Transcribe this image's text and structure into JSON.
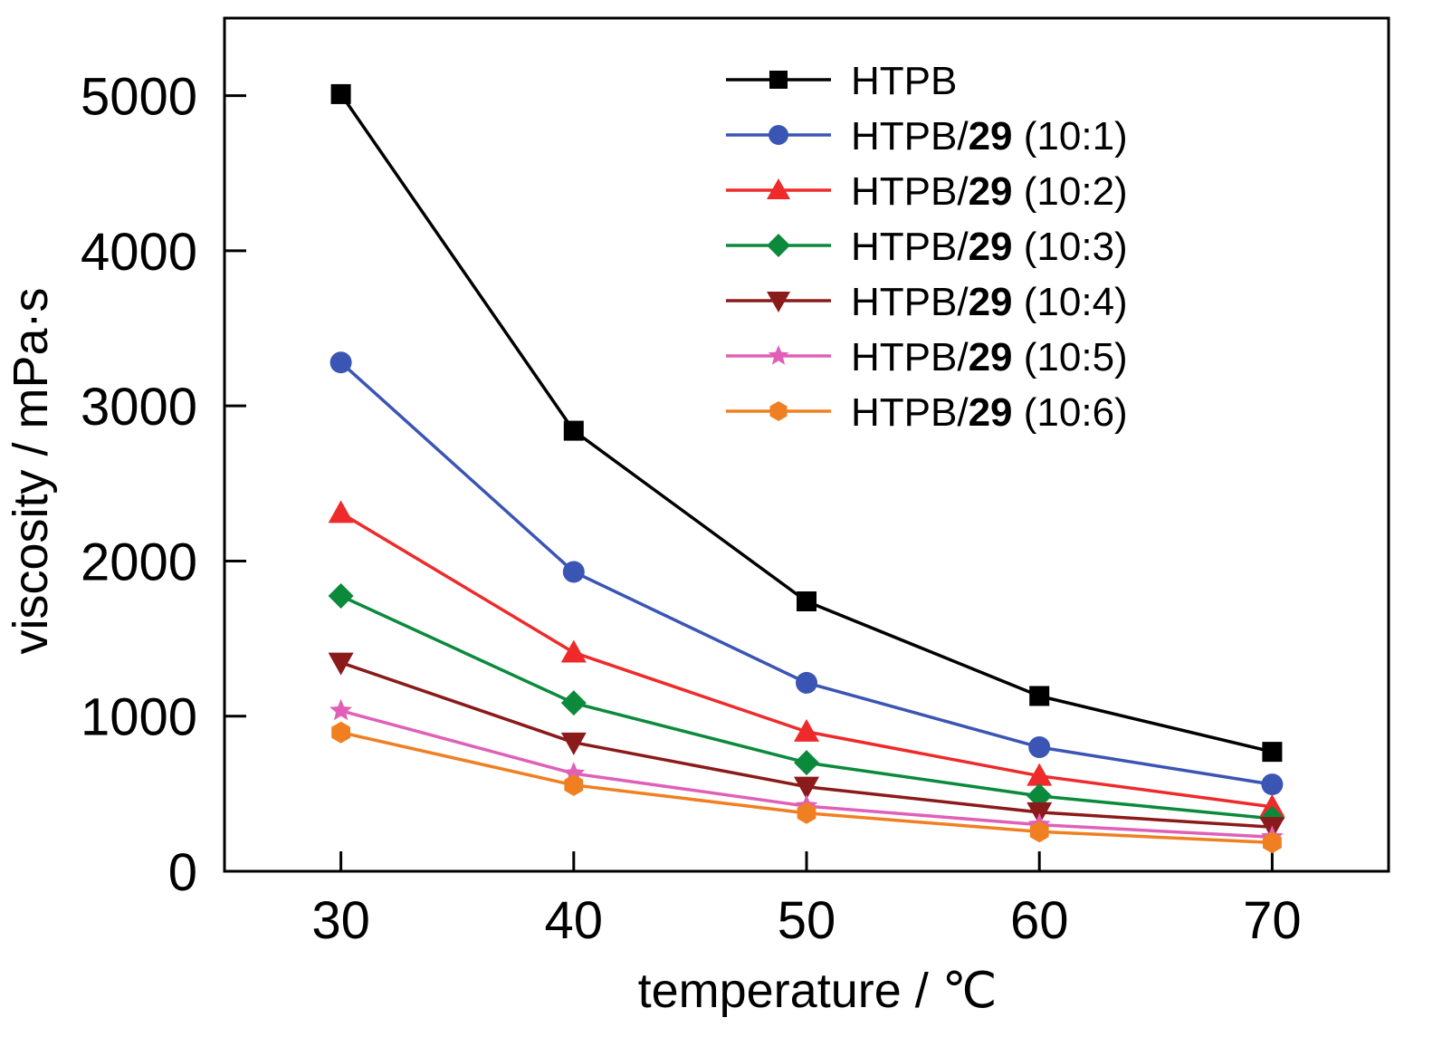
{
  "chart_data": {
    "type": "line",
    "title": "",
    "xlabel": "temperature / ℃",
    "ylabel": "viscosity / mPa·s",
    "x": [
      30,
      40,
      50,
      60,
      70
    ],
    "xlim": [
      25,
      75
    ],
    "ylim": [
      0,
      5500
    ],
    "xticks": [
      30,
      40,
      50,
      60,
      70
    ],
    "yticks": [
      0,
      1000,
      2000,
      3000,
      4000,
      5000
    ],
    "xtick_labels": [
      "30",
      "40",
      "50",
      "60",
      "70"
    ],
    "ytick_labels": [
      "0",
      "1000",
      "2000",
      "3000",
      "4000",
      "5000"
    ],
    "grid": false,
    "legend_position": "top-right",
    "series": [
      {
        "name": "HTPB",
        "label_plain": "HTPB",
        "label_bold": "",
        "label_suffix": "",
        "color": "#000000",
        "marker": "square",
        "values": [
          5010,
          2840,
          1740,
          1130,
          770
        ]
      },
      {
        "name": "HTPB/29 (10:1)",
        "label_plain": "HTPB/",
        "label_bold": "29",
        "label_suffix": " (10:1)",
        "color": "#3a55b4",
        "marker": "circle",
        "values": [
          3280,
          1930,
          1215,
          800,
          560
        ]
      },
      {
        "name": "HTPB/29 (10:2)",
        "label_plain": "HTPB/",
        "label_bold": "29",
        "label_suffix": " (10:2)",
        "color": "#ee2a2a",
        "marker": "triangle-up",
        "values": [
          2310,
          1410,
          900,
          615,
          415
        ]
      },
      {
        "name": "HTPB/29 (10:3)",
        "label_plain": "HTPB/",
        "label_bold": "29",
        "label_suffix": " (10:3)",
        "color": "#0b8a3c",
        "marker": "diamond",
        "values": [
          1775,
          1085,
          700,
          485,
          340
        ]
      },
      {
        "name": "HTPB/29 (10:4)",
        "label_plain": "HTPB/",
        "label_bold": "29",
        "label_suffix": " (10:4)",
        "color": "#8b1a1a",
        "marker": "triangle-down",
        "values": [
          1345,
          830,
          545,
          380,
          285
        ]
      },
      {
        "name": "HTPB/29 (10:5)",
        "label_plain": "HTPB/",
        "label_bold": "29",
        "label_suffix": " (10:5)",
        "color": "#e060b8",
        "marker": "star",
        "values": [
          1035,
          630,
          420,
          300,
          220
        ]
      },
      {
        "name": "HTPB/29 (10:6)",
        "label_plain": "HTPB/",
        "label_bold": "29",
        "label_suffix": " (10:6)",
        "color": "#f07f22",
        "marker": "hexagon",
        "values": [
          895,
          555,
          375,
          255,
          185
        ]
      }
    ]
  }
}
